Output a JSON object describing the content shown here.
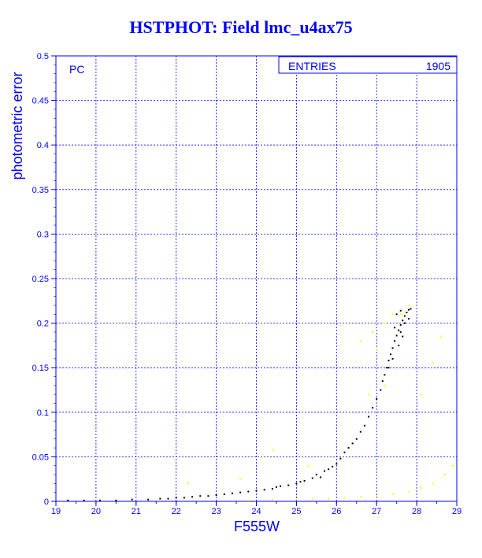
{
  "chart_data": {
    "type": "scatter",
    "title": "HSTPHOT: Field lmc_u4ax75",
    "xlabel": "F555W",
    "ylabel": "photometric error",
    "xlim": [
      19,
      29
    ],
    "ylim": [
      0,
      0.5
    ],
    "grid": true,
    "x_ticks": [
      "19",
      "20",
      "21",
      "22",
      "23",
      "24",
      "25",
      "26",
      "27",
      "28",
      "29"
    ],
    "y_ticks": [
      "0",
      "0.05",
      "0.1",
      "0.15",
      "0.2",
      "0.25",
      "0.3",
      "0.35",
      "0.4",
      "0.45",
      "0.5"
    ],
    "corner_label": "PC",
    "stats_box": {
      "label": "ENTRIES",
      "value": "1905"
    },
    "series": [
      {
        "color": "#000000",
        "points": [
          [
            19.3,
            0.001
          ],
          [
            19.7,
            0.001
          ],
          [
            20.1,
            0.001
          ],
          [
            20.5,
            0.001
          ],
          [
            20.9,
            0.002
          ],
          [
            21.3,
            0.002
          ],
          [
            21.6,
            0.003
          ],
          [
            21.8,
            0.003
          ],
          [
            22.0,
            0.004
          ],
          [
            22.2,
            0.004
          ],
          [
            22.4,
            0.005
          ],
          [
            22.6,
            0.006
          ],
          [
            22.8,
            0.006
          ],
          [
            23.0,
            0.007
          ],
          [
            23.2,
            0.008
          ],
          [
            23.4,
            0.009
          ],
          [
            23.6,
            0.01
          ],
          [
            23.8,
            0.011
          ],
          [
            24.0,
            0.012
          ],
          [
            24.2,
            0.013
          ],
          [
            24.4,
            0.014
          ],
          [
            24.5,
            0.016
          ],
          [
            24.6,
            0.017
          ],
          [
            24.8,
            0.018
          ],
          [
            25.0,
            0.02
          ],
          [
            25.1,
            0.022
          ],
          [
            25.2,
            0.023
          ],
          [
            25.4,
            0.026
          ],
          [
            25.5,
            0.03
          ],
          [
            25.6,
            0.027
          ],
          [
            25.7,
            0.034
          ],
          [
            25.8,
            0.036
          ],
          [
            25.9,
            0.039
          ],
          [
            26.0,
            0.042
          ],
          [
            26.1,
            0.048
          ],
          [
            26.2,
            0.055
          ],
          [
            26.3,
            0.06
          ],
          [
            26.4,
            0.065
          ],
          [
            26.5,
            0.07
          ],
          [
            26.6,
            0.078
          ],
          [
            26.7,
            0.085
          ],
          [
            26.8,
            0.095
          ],
          [
            26.9,
            0.105
          ],
          [
            27.0,
            0.115
          ],
          [
            27.1,
            0.125
          ],
          [
            27.15,
            0.135
          ],
          [
            27.2,
            0.142
          ],
          [
            27.25,
            0.15
          ],
          [
            27.3,
            0.158
          ],
          [
            27.35,
            0.165
          ],
          [
            27.4,
            0.172
          ],
          [
            27.45,
            0.18
          ],
          [
            27.5,
            0.186
          ],
          [
            27.55,
            0.192
          ],
          [
            27.6,
            0.198
          ],
          [
            27.65,
            0.203
          ],
          [
            27.7,
            0.208
          ],
          [
            27.75,
            0.212
          ],
          [
            27.8,
            0.215
          ],
          [
            27.85,
            0.216
          ],
          [
            27.5,
            0.21
          ],
          [
            27.6,
            0.214
          ],
          [
            27.7,
            0.2
          ],
          [
            27.4,
            0.16
          ],
          [
            27.3,
            0.15
          ],
          [
            27.6,
            0.19
          ],
          [
            27.8,
            0.205
          ],
          [
            27.55,
            0.175
          ],
          [
            27.65,
            0.185
          ],
          [
            27.45,
            0.195
          ]
        ]
      },
      {
        "color": "#ffff00",
        "points": [
          [
            23.8,
            0.001
          ],
          [
            24.4,
            0.002
          ],
          [
            25.0,
            0.002
          ],
          [
            25.4,
            0.003
          ],
          [
            25.8,
            0.003
          ],
          [
            26.2,
            0.004
          ],
          [
            26.6,
            0.005
          ],
          [
            27.0,
            0.006
          ],
          [
            27.4,
            0.008
          ],
          [
            27.8,
            0.011
          ],
          [
            28.1,
            0.015
          ],
          [
            28.4,
            0.02
          ],
          [
            28.7,
            0.03
          ],
          [
            28.9,
            0.04
          ],
          [
            22.3,
            0.02
          ],
          [
            23.6,
            0.025
          ],
          [
            24.4,
            0.058
          ],
          [
            25.3,
            0.04
          ],
          [
            26.6,
            0.18
          ],
          [
            26.9,
            0.19
          ],
          [
            27.2,
            0.2
          ],
          [
            27.6,
            0.21
          ],
          [
            27.0,
            0.17
          ],
          [
            27.2,
            0.13
          ],
          [
            28.6,
            0.185
          ],
          [
            28.4,
            0.155
          ],
          [
            27.4,
            0.21
          ],
          [
            26.8,
            0.12
          ],
          [
            27.8,
            0.22
          ],
          [
            28.1,
            0.12
          ]
        ]
      }
    ]
  }
}
